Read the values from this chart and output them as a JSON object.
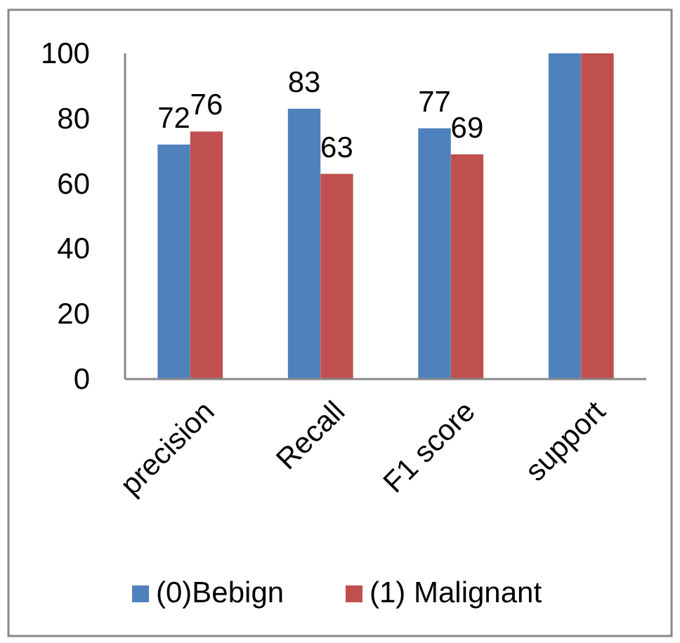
{
  "chart_data": {
    "type": "bar",
    "categories": [
      "precision",
      "Recall",
      "F1 score",
      "support"
    ],
    "series": [
      {
        "name": "(0)Bebign",
        "color": "#4f81bd",
        "values": [
          72,
          83,
          77,
          100
        ],
        "value_labels": [
          "72",
          "83",
          "77",
          null
        ]
      },
      {
        "name": "(1) Malignant",
        "color": "#c0504d",
        "values": [
          76,
          63,
          69,
          100
        ],
        "value_labels": [
          "76",
          "63",
          "69",
          null
        ]
      }
    ],
    "ylim": [
      0,
      100
    ],
    "yticks": [
      0,
      20,
      40,
      60,
      80,
      100
    ],
    "grid": false,
    "legend": "bottom"
  }
}
